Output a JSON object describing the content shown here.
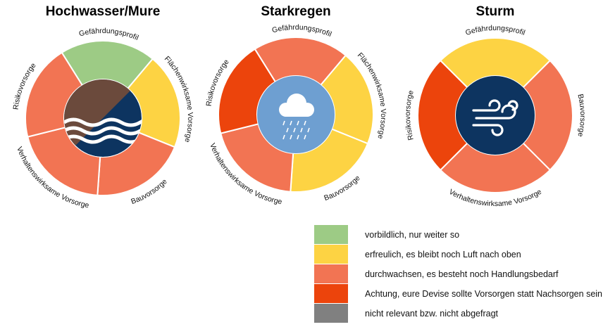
{
  "colors": {
    "green": "#9dcb85",
    "yellow": "#fdd343",
    "salmon": "#f27453",
    "red": "#ec440c",
    "gray": "#808080",
    "navy": "#0d3460",
    "brown": "#6b4a3c",
    "sky": "#6e9fd1"
  },
  "wheels": [
    {
      "title": "Hochwasser/Mure",
      "icon": "flood-wave-icon",
      "segments": [
        {
          "label": "Gefährdungsprofil",
          "rating": "green",
          "share": 1
        },
        {
          "label": "Flächenwirksame Vorsorge",
          "rating": "yellow",
          "share": 1
        },
        {
          "label": "Bauvorsorge",
          "rating": "salmon",
          "share": 1
        },
        {
          "label": "Verhaltenswirksame Vorsorge",
          "rating": "salmon",
          "share": 1
        },
        {
          "label": "Risikovorsorge",
          "rating": "salmon",
          "share": 1
        }
      ]
    },
    {
      "title": "Starkregen",
      "icon": "heavy-rain-cloud-icon",
      "segments": [
        {
          "label": "Gefährdungsprofil",
          "rating": "salmon",
          "share": 1
        },
        {
          "label": "Flächenwirksame Vorsorge",
          "rating": "yellow",
          "share": 1
        },
        {
          "label": "Bauvorsorge",
          "rating": "yellow",
          "share": 1
        },
        {
          "label": "Verhaltenswirksame Vorsorge",
          "rating": "salmon",
          "share": 1
        },
        {
          "label": "Risikovorsorge",
          "rating": "red",
          "share": 1
        }
      ]
    },
    {
      "title": "Sturm",
      "icon": "wind-storm-icon",
      "segments": [
        {
          "label": "Gefährdungsprofil",
          "rating": "yellow",
          "share": 1
        },
        {
          "label": "Bauvorsorge",
          "rating": "salmon",
          "share": 1
        },
        {
          "label": "Verhaltenswirksame Vorsorge",
          "rating": "salmon",
          "share": 1
        },
        {
          "label": "Risikovorsorge",
          "rating": "red",
          "share": 1
        }
      ]
    }
  ],
  "legend": [
    {
      "rating": "green",
      "text": "vorbildlich, nur weiter so"
    },
    {
      "rating": "yellow",
      "text": "erfreulich, es bleibt noch Luft nach oben"
    },
    {
      "rating": "salmon",
      "text": "durchwachsen, es besteht noch Handlungsbedarf"
    },
    {
      "rating": "red",
      "text": "Achtung, eure Devise sollte Vorsorgen statt Nachsorgen sein"
    },
    {
      "rating": "gray",
      "text": "nicht relevant bzw. nicht abgefragt"
    }
  ]
}
